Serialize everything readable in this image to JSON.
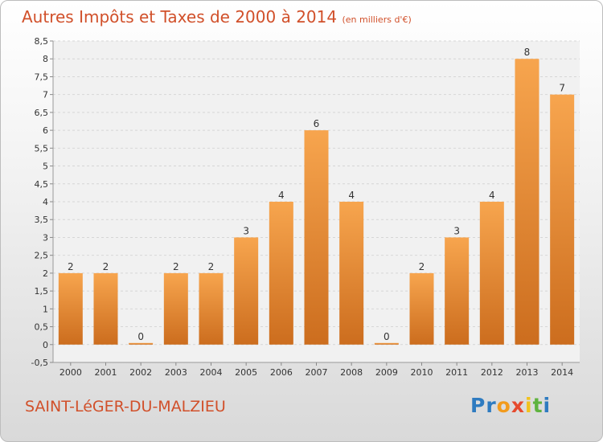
{
  "header": {
    "title": "Autres Impôts et Taxes de 2000 à 2014",
    "unit": "(en milliers d'€)"
  },
  "footer": {
    "city": "SAINT-LéGER-DU-MALZIEU"
  },
  "logo": {
    "text": "Proxiti",
    "letter_colors": [
      "#2e7bc0",
      "#2e7bc0",
      "#f29b1d",
      "#e64a2e",
      "#f2c21d",
      "#5fb33f",
      "#2e7bc0"
    ]
  },
  "colors": {
    "bar_light": "#f7a54e",
    "bar_dark": "#cc6d1e",
    "title": "#d1502a"
  },
  "chart_data": {
    "type": "bar",
    "categories": [
      "2000",
      "2001",
      "2002",
      "2003",
      "2004",
      "2005",
      "2006",
      "2007",
      "2008",
      "2009",
      "2010",
      "2011",
      "2012",
      "2013",
      "2014"
    ],
    "values": [
      2,
      2,
      0,
      2,
      2,
      3,
      4,
      6,
      4,
      0,
      2,
      3,
      4,
      8,
      7
    ],
    "data_labels": [
      "2",
      "2",
      "0",
      "2",
      "2",
      "3",
      "4",
      "6",
      "4",
      "0",
      "2",
      "3",
      "4",
      "8",
      "7"
    ],
    "title": "Autres Impôts et Taxes de 2000 à 2014",
    "ylim": [
      -0.5,
      8.5
    ],
    "yticks": [
      "-0,5",
      "0",
      "0,5",
      "1",
      "1,5",
      "2",
      "2,5",
      "3",
      "3,5",
      "4",
      "4,5",
      "5",
      "5,5",
      "6",
      "6,5",
      "7",
      "7,5",
      "8",
      "8,5"
    ],
    "grid": true,
    "legend": "none"
  }
}
